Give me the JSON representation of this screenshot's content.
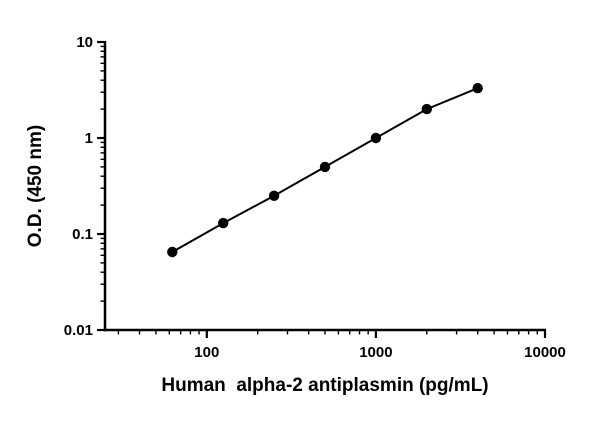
{
  "chart_data": {
    "type": "scatter",
    "title": "",
    "xlabel": "Human  alpha-2 antiplasmin (pg/mL)",
    "ylabel": "O.D. (450 nm)",
    "x_scale": "log",
    "y_scale": "log",
    "xlim": [
      25,
      10000
    ],
    "ylim": [
      0.01,
      10
    ],
    "x": [
      62.5,
      125,
      250,
      500,
      1000,
      2000,
      4000
    ],
    "y": [
      0.065,
      0.13,
      0.25,
      0.5,
      1.0,
      2.0,
      3.3
    ],
    "x_ticks": [
      100,
      1000,
      10000
    ],
    "x_tick_labels": [
      "100",
      "1000",
      "10000"
    ],
    "y_ticks": [
      0.01,
      0.1,
      1,
      10
    ],
    "y_tick_labels": [
      "0.01",
      "0.1",
      "1",
      "10"
    ],
    "grid": false,
    "legend": false,
    "line_color": "#000000",
    "marker_color": "#000000",
    "axis_color": "#000000"
  }
}
